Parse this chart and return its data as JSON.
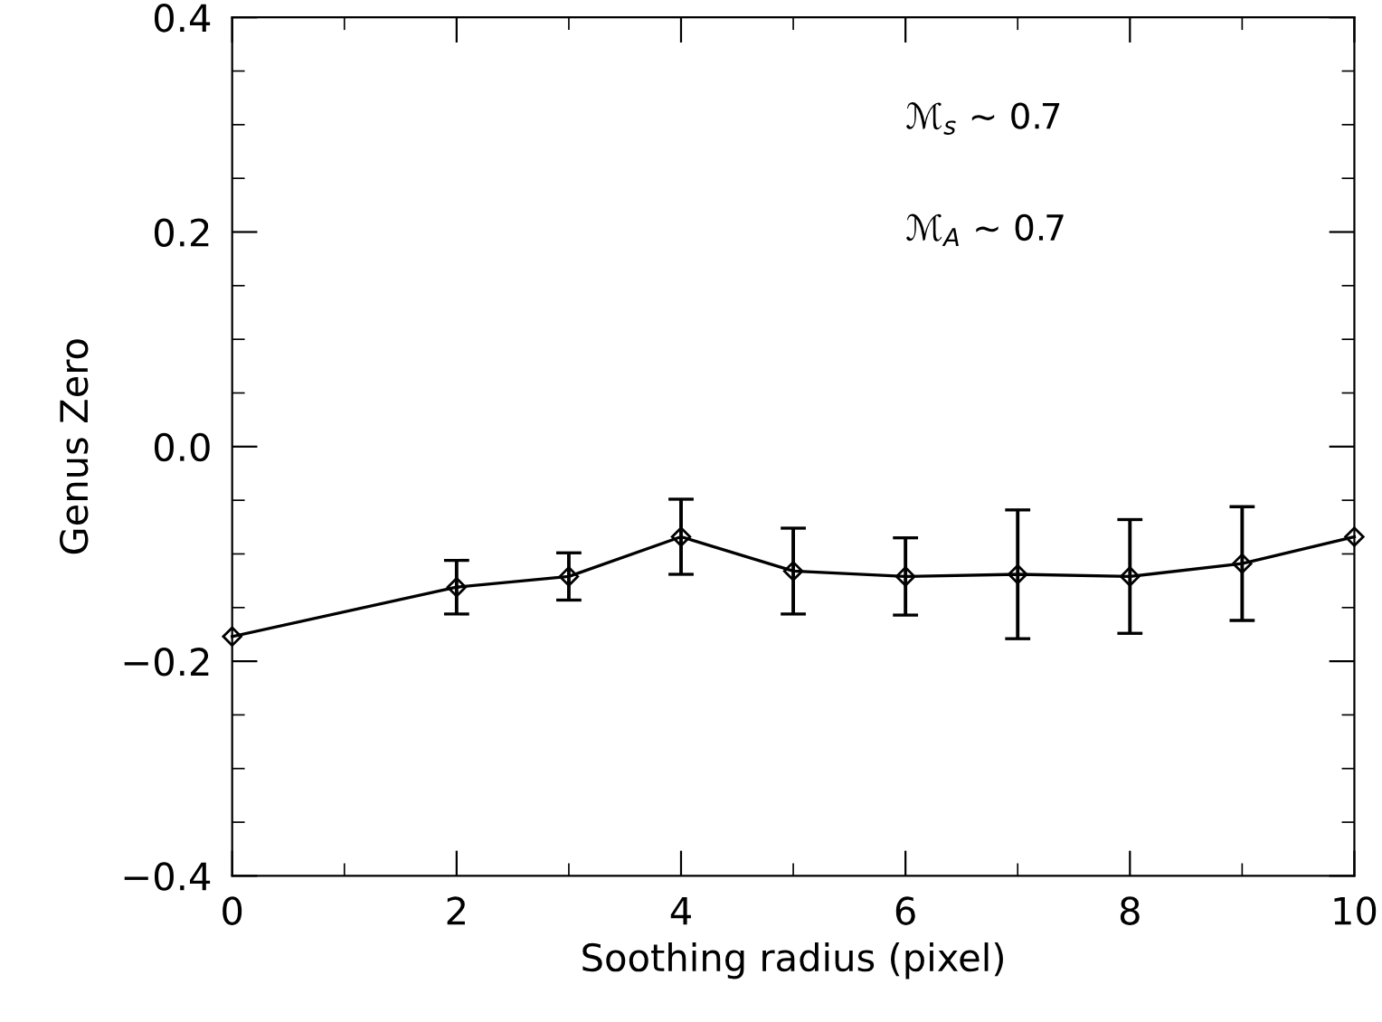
{
  "chart_data": {
    "type": "line",
    "xlabel": "Soothing radius (pixel)",
    "ylabel": "Genus Zero",
    "x": [
      0,
      2,
      3,
      4,
      5,
      6,
      7,
      8,
      9,
      10
    ],
    "series": [
      {
        "color": "#000000",
        "values": [
          -0.177,
          -0.131,
          -0.121,
          -0.084,
          -0.116,
          -0.121,
          -0.119,
          -0.121,
          -0.109,
          -0.084
        ],
        "errors": [
          null,
          0.025,
          0.022,
          0.035,
          0.04,
          0.036,
          0.06,
          0.053,
          0.053,
          null
        ]
      }
    ],
    "xlim": [
      0,
      10
    ],
    "xticks": [
      0,
      2,
      4,
      6,
      8,
      10
    ],
    "ylim": [
      -0.4,
      0.4
    ],
    "yticks": [
      {
        "value": -0.4,
        "label": "−0.4"
      },
      {
        "value": -0.2,
        "label": "−0.2"
      },
      {
        "value": 0.0,
        "label": "0.0"
      },
      {
        "value": 0.2,
        "label": "0.2"
      },
      {
        "value": 0.4,
        "label": "0.4"
      }
    ],
    "marker": "diamond",
    "line_style": "solid",
    "grid": false,
    "legend": false,
    "annotations": [
      "ℳ$_{s}$ ~ 0.7",
      "ℳ$_{A}$ ~ 0.7"
    ]
  }
}
